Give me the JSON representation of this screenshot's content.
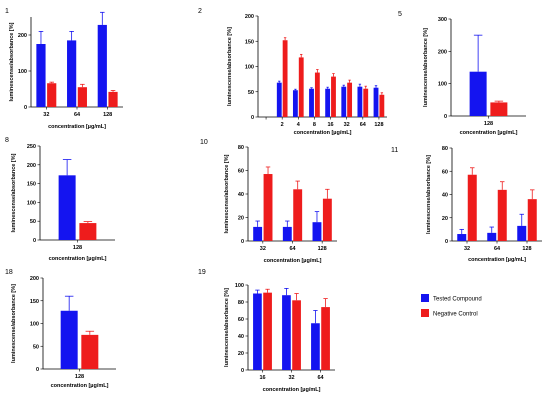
{
  "colors": {
    "tested": "#1414f0",
    "control": "#ee1c1c",
    "axis": "#000000"
  },
  "legend": [
    {
      "label": "Tested Compound",
      "color": "#1414f0"
    },
    {
      "label": "Negative Control",
      "color": "#ee1c1c"
    }
  ],
  "chart_data": [
    {
      "panel": "1",
      "type": "bar",
      "categories": [
        "32",
        "64",
        "128"
      ],
      "series": [
        {
          "name": "Tested Compound",
          "values": [
            175,
            185,
            228
          ],
          "errors": [
            35,
            25,
            35
          ]
        },
        {
          "name": "Negative Control",
          "values": [
            66,
            55,
            42
          ],
          "errors": [
            3,
            8,
            4
          ]
        }
      ],
      "ylim": [
        0,
        250
      ],
      "yticks": [
        "0",
        "100",
        "200"
      ],
      "xlabel": "concentration [µg/mL]",
      "ylabel": "luminescense/absorbance [%]"
    },
    {
      "panel": "2",
      "type": "bar",
      "categories": [
        "",
        "2",
        "4",
        "8",
        "16",
        "32",
        "64",
        "128"
      ],
      "series": [
        {
          "name": "Tested Compound",
          "values": [
            null,
            68,
            53,
            56,
            56,
            60,
            60,
            58
          ],
          "errors": [
            null,
            3,
            2,
            2,
            3,
            3,
            5,
            4
          ]
        },
        {
          "name": "Negative Control",
          "values": [
            null,
            152,
            118,
            88,
            80,
            68,
            56,
            44
          ],
          "errors": [
            null,
            5,
            6,
            6,
            6,
            5,
            5,
            4
          ]
        }
      ],
      "ylim": [
        0,
        200
      ],
      "yticks": [
        "0",
        "50",
        "100",
        "150",
        "200"
      ],
      "xlabel": "concentration [µg/mL]",
      "ylabel": "luminescense/absorbance [%]"
    },
    {
      "panel": "5",
      "type": "bar",
      "categories": [
        "128"
      ],
      "series": [
        {
          "name": "Tested Compound",
          "values": [
            137
          ],
          "errors": [
            113
          ]
        },
        {
          "name": "Negative Control",
          "values": [
            42
          ],
          "errors": [
            4
          ]
        }
      ],
      "ylim": [
        0,
        300
      ],
      "yticks": [
        "0",
        "100",
        "200",
        "300"
      ],
      "xlabel": "concentration [µg/mL]",
      "ylabel": "luminescense/absorbance [%]"
    },
    {
      "panel": "8",
      "type": "bar",
      "categories": [
        "128"
      ],
      "series": [
        {
          "name": "Tested Compound",
          "values": [
            172
          ],
          "errors": [
            42
          ]
        },
        {
          "name": "Negative Control",
          "values": [
            45
          ],
          "errors": [
            4
          ]
        }
      ],
      "ylim": [
        0,
        250
      ],
      "yticks": [
        "0",
        "50",
        "100",
        "150",
        "200",
        "250"
      ],
      "xlabel": "concentration [µg/mL]",
      "ylabel": "luminescense/absorbance [%]"
    },
    {
      "panel": "10",
      "type": "bar",
      "categories": [
        "32",
        "64",
        "128"
      ],
      "series": [
        {
          "name": "Tested Compound",
          "values": [
            12,
            12,
            16
          ],
          "errors": [
            5,
            5,
            9
          ]
        },
        {
          "name": "Negative Control",
          "values": [
            57,
            44,
            36
          ],
          "errors": [
            6,
            7,
            8
          ]
        }
      ],
      "ylim": [
        0,
        80
      ],
      "yticks": [
        "0",
        "20",
        "40",
        "60",
        "80"
      ],
      "xlabel": "concentration [µg/mL]",
      "ylabel": "luminescense/absorbance [%]"
    },
    {
      "panel": "11",
      "type": "bar",
      "categories": [
        "32",
        "64",
        "128"
      ],
      "series": [
        {
          "name": "Tested Compound",
          "values": [
            6,
            7,
            13
          ],
          "errors": [
            4,
            5,
            10
          ]
        },
        {
          "name": "Negative Control",
          "values": [
            57,
            44,
            36
          ],
          "errors": [
            6,
            7,
            8
          ]
        }
      ],
      "ylim": [
        0,
        80
      ],
      "yticks": [
        "0",
        "20",
        "40",
        "60",
        "80"
      ],
      "xlabel": "concentration [µg/mL]",
      "ylabel": "luminescense/absorbance [%]"
    },
    {
      "panel": "18",
      "type": "bar",
      "categories": [
        "128"
      ],
      "series": [
        {
          "name": "Tested Compound",
          "values": [
            128
          ],
          "errors": [
            32
          ]
        },
        {
          "name": "Negative Control",
          "values": [
            75
          ],
          "errors": [
            8
          ]
        }
      ],
      "ylim": [
        0,
        200
      ],
      "yticks": [
        "0",
        "50",
        "100",
        "150",
        "200"
      ],
      "xlabel": "concentration [µg/mL]",
      "ylabel": "luminescense/absorbance [%]"
    },
    {
      "panel": "19",
      "type": "bar",
      "categories": [
        "16",
        "32",
        "64"
      ],
      "series": [
        {
          "name": "Tested Compound",
          "values": [
            90,
            88,
            55
          ],
          "errors": [
            4,
            8,
            15
          ]
        },
        {
          "name": "Negative Control",
          "values": [
            91,
            82,
            74
          ],
          "errors": [
            4,
            8,
            10
          ]
        }
      ],
      "ylim": [
        0,
        100
      ],
      "yticks": [
        "0",
        "20",
        "40",
        "60",
        "80",
        "100"
      ],
      "xlabel": "concentration [µg/mL]",
      "ylabel": "luminescense/absorbance [%]"
    }
  ]
}
